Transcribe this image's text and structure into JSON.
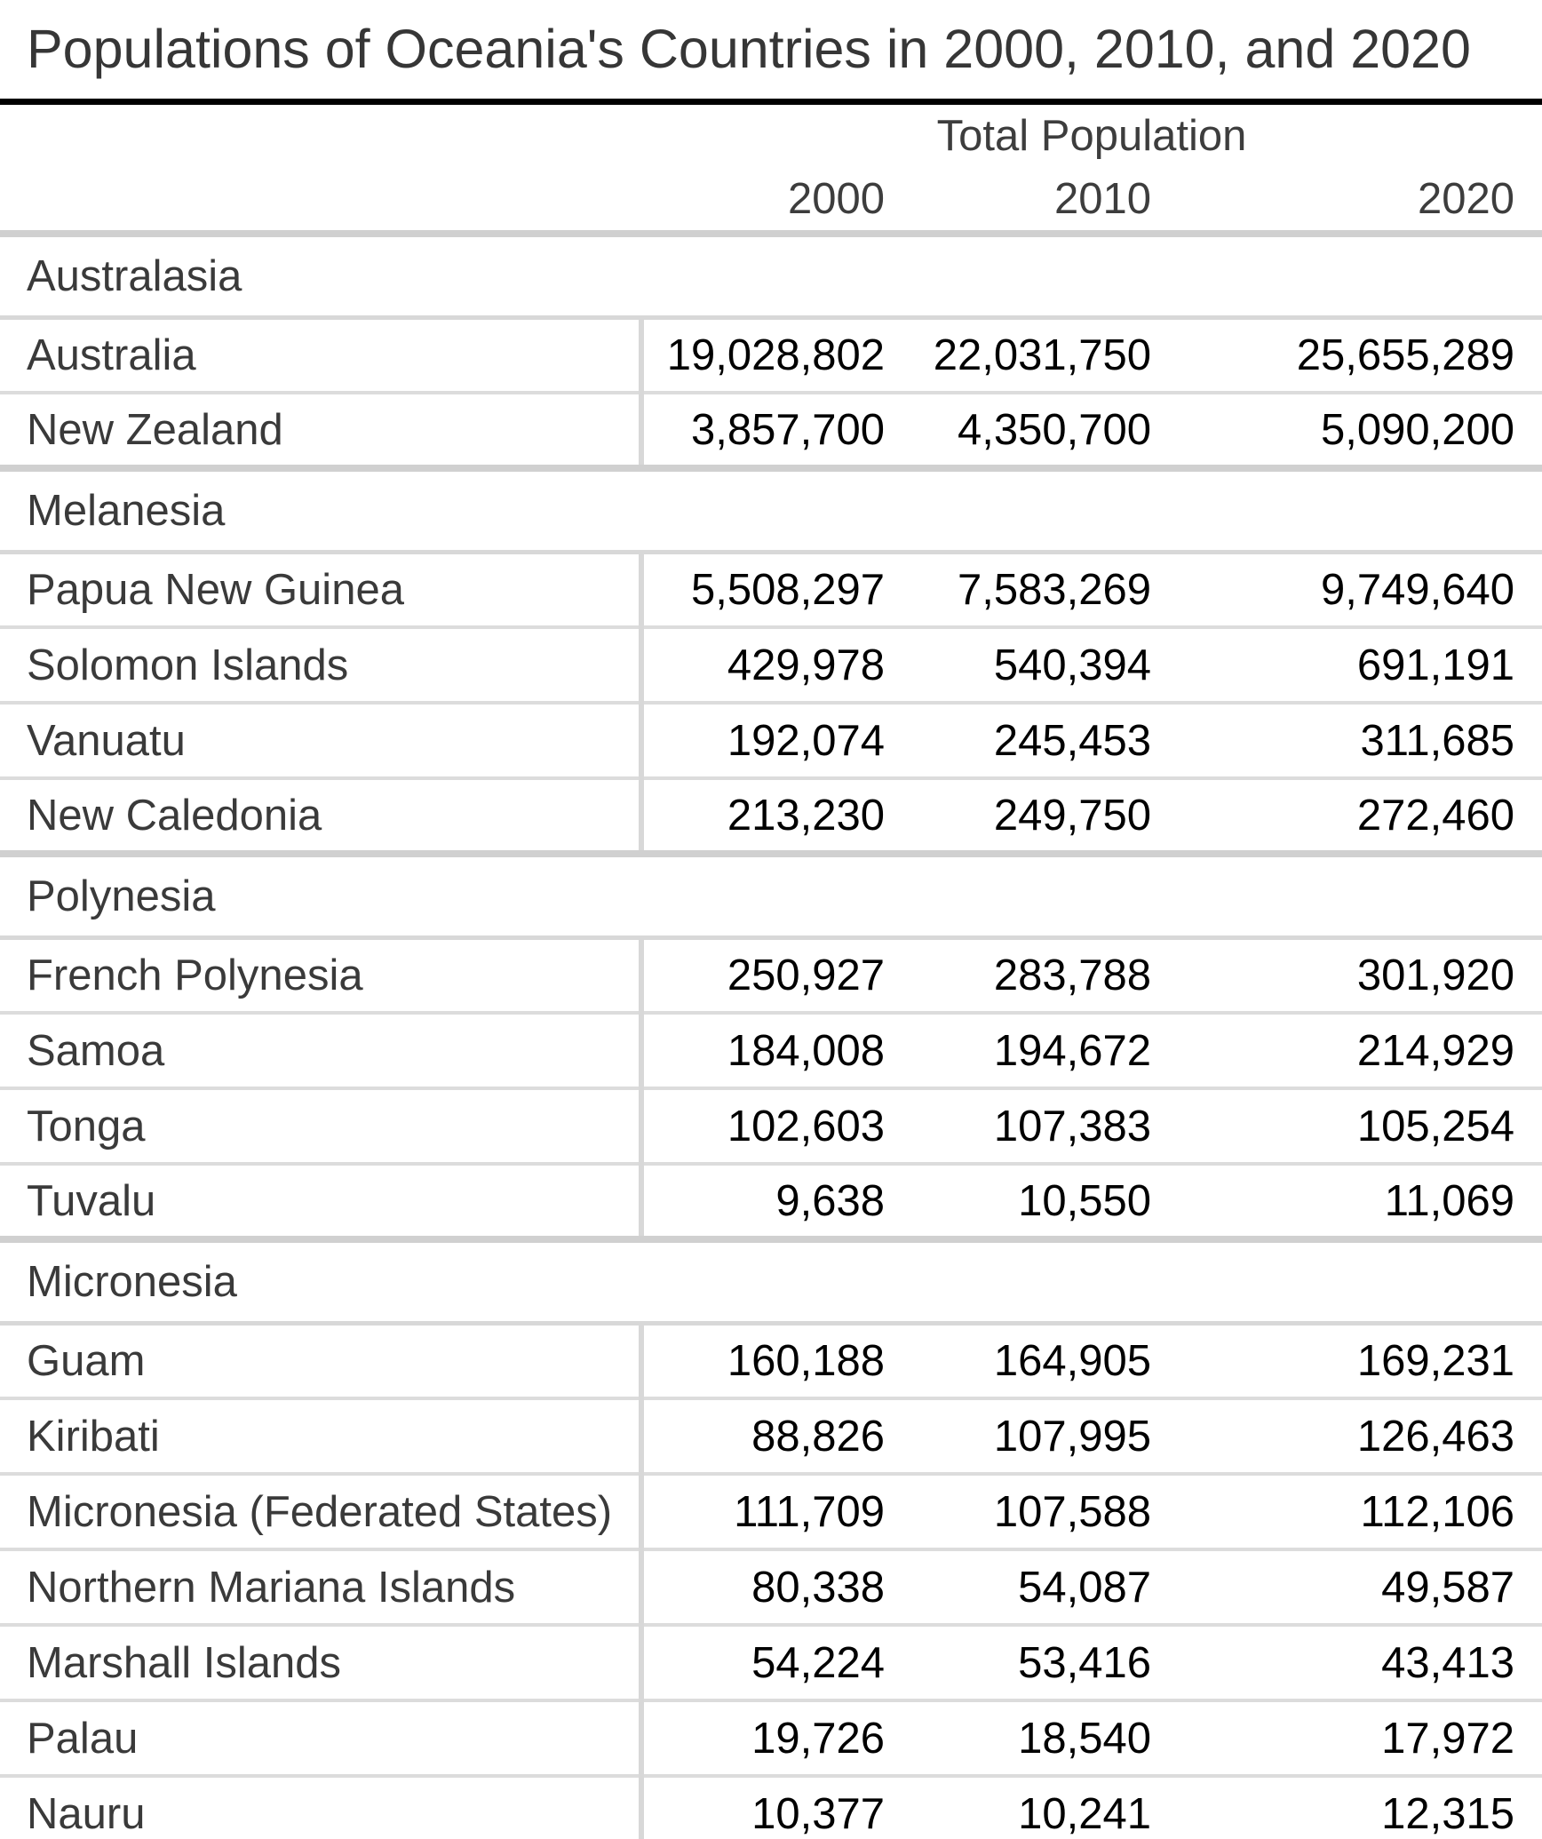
{
  "title": "Populations of Oceania's Countries in 2000, 2010, and 2020",
  "table": {
    "group_header": "Total Population",
    "year_columns": [
      "2000",
      "2010",
      "2020"
    ],
    "sections": [
      {
        "name": "Australasia",
        "rows": [
          {
            "country": "Australia",
            "values": [
              "19,028,802",
              "22,031,750",
              "25,655,289"
            ]
          },
          {
            "country": "New Zealand",
            "values": [
              "3,857,700",
              "4,350,700",
              "5,090,200"
            ]
          }
        ]
      },
      {
        "name": "Melanesia",
        "rows": [
          {
            "country": "Papua New Guinea",
            "values": [
              "5,508,297",
              "7,583,269",
              "9,749,640"
            ]
          },
          {
            "country": "Solomon Islands",
            "values": [
              "429,978",
              "540,394",
              "691,191"
            ]
          },
          {
            "country": "Vanuatu",
            "values": [
              "192,074",
              "245,453",
              "311,685"
            ]
          },
          {
            "country": "New Caledonia",
            "values": [
              "213,230",
              "249,750",
              "272,460"
            ]
          }
        ]
      },
      {
        "name": "Polynesia",
        "rows": [
          {
            "country": "French Polynesia",
            "values": [
              "250,927",
              "283,788",
              "301,920"
            ]
          },
          {
            "country": "Samoa",
            "values": [
              "184,008",
              "194,672",
              "214,929"
            ]
          },
          {
            "country": "Tonga",
            "values": [
              "102,603",
              "107,383",
              "105,254"
            ]
          },
          {
            "country": "Tuvalu",
            "values": [
              "9,638",
              "10,550",
              "11,069"
            ]
          }
        ]
      },
      {
        "name": "Micronesia",
        "rows": [
          {
            "country": "Guam",
            "values": [
              "160,188",
              "164,905",
              "169,231"
            ]
          },
          {
            "country": "Kiribati",
            "values": [
              "88,826",
              "107,995",
              "126,463"
            ]
          },
          {
            "country": "Micronesia (Federated States)",
            "values": [
              "111,709",
              "107,588",
              "112,106"
            ]
          },
          {
            "country": "Northern Mariana Islands",
            "values": [
              "80,338",
              "54,087",
              "49,587"
            ]
          },
          {
            "country": "Marshall Islands",
            "values": [
              "54,224",
              "53,416",
              "43,413"
            ]
          },
          {
            "country": "Palau",
            "values": [
              "19,726",
              "18,540",
              "17,972"
            ]
          },
          {
            "country": "Nauru",
            "values": [
              "10,377",
              "10,241",
              "12,315"
            ]
          }
        ]
      }
    ]
  },
  "chart_data": {
    "type": "table",
    "title": "Populations of Oceania's Countries in 2000, 2010, and 2020",
    "group_header": "Total Population",
    "columns": [
      2000,
      2010,
      2020
    ],
    "sections": [
      {
        "region": "Australasia",
        "rows": [
          {
            "country": "Australia",
            "values": [
              19028802,
              22031750,
              25655289
            ]
          },
          {
            "country": "New Zealand",
            "values": [
              3857700,
              4350700,
              5090200
            ]
          }
        ]
      },
      {
        "region": "Melanesia",
        "rows": [
          {
            "country": "Papua New Guinea",
            "values": [
              5508297,
              7583269,
              9749640
            ]
          },
          {
            "country": "Solomon Islands",
            "values": [
              429978,
              540394,
              691191
            ]
          },
          {
            "country": "Vanuatu",
            "values": [
              192074,
              245453,
              311685
            ]
          },
          {
            "country": "New Caledonia",
            "values": [
              213230,
              249750,
              272460
            ]
          }
        ]
      },
      {
        "region": "Polynesia",
        "rows": [
          {
            "country": "French Polynesia",
            "values": [
              250927,
              283788,
              301920
            ]
          },
          {
            "country": "Samoa",
            "values": [
              184008,
              194672,
              214929
            ]
          },
          {
            "country": "Tonga",
            "values": [
              102603,
              107383,
              105254
            ]
          },
          {
            "country": "Tuvalu",
            "values": [
              9638,
              10550,
              11069
            ]
          }
        ]
      },
      {
        "region": "Micronesia",
        "rows": [
          {
            "country": "Guam",
            "values": [
              160188,
              164905,
              169231
            ]
          },
          {
            "country": "Kiribati",
            "values": [
              88826,
              107995,
              126463
            ]
          },
          {
            "country": "Micronesia (Federated States)",
            "values": [
              111709,
              107588,
              112106
            ]
          },
          {
            "country": "Northern Mariana Islands",
            "values": [
              80338,
              54087,
              49587
            ]
          },
          {
            "country": "Marshall Islands",
            "values": [
              54224,
              53416,
              43413
            ]
          },
          {
            "country": "Palau",
            "values": [
              19726,
              18540,
              17972
            ]
          },
          {
            "country": "Nauru",
            "values": [
              10377,
              10241,
              12315
            ]
          }
        ]
      }
    ]
  }
}
